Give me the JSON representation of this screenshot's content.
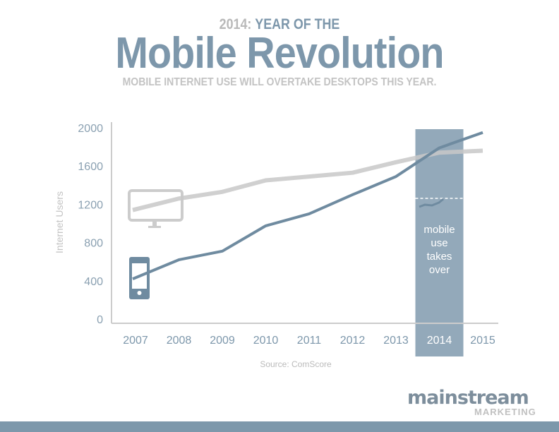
{
  "header": {
    "year_prefix": "2014:",
    "year_suffix": "YEAR OF THE",
    "title": "Mobile Revolution",
    "subtitle": "MOBILE INTERNET USE WILL OVERTAKE DESKTOPS THIS YEAR."
  },
  "chart_data": {
    "type": "line",
    "x": [
      "2007",
      "2008",
      "2009",
      "2010",
      "2011",
      "2012",
      "2013",
      "2014",
      "2015"
    ],
    "ylabel": "Internet Users",
    "ylim": [
      0,
      2000
    ],
    "yticks": [
      "0",
      "400",
      "800",
      "1200",
      "1600",
      "2000"
    ],
    "series": [
      {
        "icon": "desktop-monitor-icon",
        "color": "#c8c8c8",
        "values": [
          1140,
          1260,
          1330,
          1450,
          1490,
          1530,
          1640,
          1740,
          1760
        ]
      },
      {
        "icon": "mobile-phone-icon",
        "color": "#6f8ba0",
        "values": [
          420,
          620,
          710,
          975,
          1100,
          1300,
          1490,
          1790,
          1950
        ]
      }
    ],
    "highlight": {
      "category": "2014",
      "color": "#93a9ba",
      "label": [
        "mobile",
        "use",
        "takes",
        "over"
      ]
    },
    "source": "Source: ComScore"
  },
  "brand": {
    "name": "mainstream",
    "sub": "MARKETING",
    "color": "#7d98ab"
  }
}
